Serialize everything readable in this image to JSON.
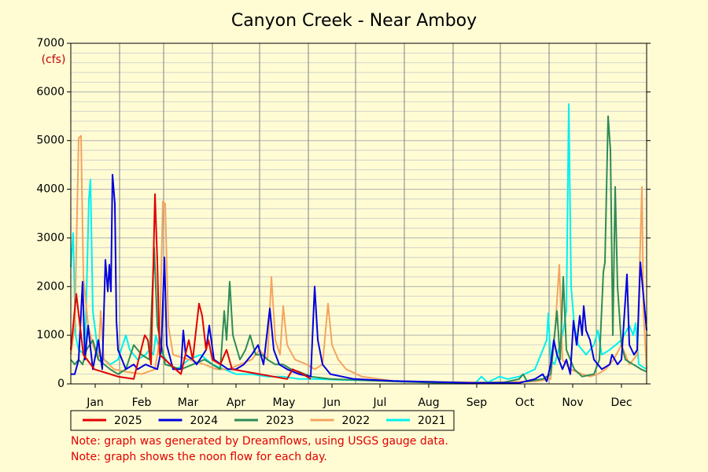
{
  "chart_data": {
    "type": "line",
    "title": "Canyon Creek - Near Amboy",
    "y_label": "(cfs)",
    "xlim": [
      0,
      366
    ],
    "ylim": [
      0,
      7000
    ],
    "yticks": [
      0,
      1000,
      2000,
      3000,
      4000,
      5000,
      6000,
      7000
    ],
    "yminorticks": [
      200,
      400,
      600,
      800,
      1200,
      1400,
      1600,
      1800,
      2200,
      2400,
      2600,
      2800,
      3200,
      3400,
      3600,
      3800,
      4200,
      4400,
      4600,
      4800,
      5200,
      5400,
      5600,
      5800,
      6200,
      6400,
      6600,
      6800
    ],
    "xgrid": [
      0,
      31,
      59,
      90,
      120,
      151,
      181,
      212,
      243,
      273,
      304,
      334,
      366
    ],
    "xticks": [
      {
        "value": 15.5,
        "label": "Jan"
      },
      {
        "value": 45,
        "label": "Feb"
      },
      {
        "value": 74.5,
        "label": "Mar"
      },
      {
        "value": 105,
        "label": "Apr"
      },
      {
        "value": 135.5,
        "label": "May"
      },
      {
        "value": 166,
        "label": "Jun"
      },
      {
        "value": 196.5,
        "label": "Jul"
      },
      {
        "value": 227.5,
        "label": "Aug"
      },
      {
        "value": 258,
        "label": "Sep"
      },
      {
        "value": 288.5,
        "label": "Oct"
      },
      {
        "value": 319,
        "label": "Nov"
      },
      {
        "value": 350,
        "label": "Dec"
      }
    ],
    "grid": true,
    "legend": "bottom",
    "series": [
      {
        "name": "2025",
        "color": "#e00000",
        "x": [
          0,
          3.5,
          8,
          15,
          30,
          40,
          47,
          49,
          51,
          53.5,
          55,
          56.5,
          70,
          75,
          77.5,
          81.5,
          83.5,
          86,
          87.5,
          90,
          95,
          99,
          102.5,
          137.5,
          141,
          147.5,
          152.5
        ],
        "values": [
          700,
          1850,
          600,
          300,
          150,
          100,
          1000,
          900,
          400,
          3900,
          2500,
          600,
          200,
          900,
          500,
          1650,
          1400,
          700,
          900,
          500,
          400,
          700,
          300,
          100,
          300,
          200,
          100
        ]
      },
      {
        "name": "2024",
        "color": "#0000e0",
        "x": [
          0,
          2.5,
          5,
          7.5,
          9,
          11,
          14,
          17.5,
          20,
          22,
          23.5,
          24.5,
          25.5,
          26.5,
          28,
          29,
          30,
          35,
          40,
          42.5,
          47.5,
          55,
          57.5,
          59.5,
          61,
          65,
          70,
          71.5,
          73,
          77.5,
          80,
          86,
          88,
          91,
          100,
          105,
          110,
          115,
          119,
          122.5,
          126.5,
          129,
          132.5,
          137.5,
          145,
          152.5,
          155,
          157,
          160,
          165,
          180,
          205,
          230,
          255,
          285,
          295,
          300,
          302.5,
          305,
          307,
          309,
          312.5,
          315,
          317.5,
          319.5,
          321.5,
          323.5,
          325,
          326,
          327.5,
          330,
          332.5,
          337.5,
          342.5,
          344,
          347.5,
          350,
          353.5,
          355,
          358,
          360,
          362,
          364,
          366
        ],
        "values": [
          200,
          200,
          500,
          2100,
          500,
          1200,
          300,
          900,
          300,
          2550,
          1900,
          2450,
          1900,
          4300,
          3700,
          1300,
          700,
          300,
          400,
          300,
          400,
          300,
          700,
          2600,
          800,
          300,
          300,
          1100,
          600,
          500,
          400,
          700,
          1200,
          500,
          300,
          300,
          400,
          600,
          800,
          400,
          1550,
          700,
          400,
          300,
          200,
          150,
          2000,
          900,
          400,
          200,
          100,
          60,
          40,
          20,
          20,
          100,
          200,
          50,
          400,
          900,
          600,
          300,
          500,
          200,
          1300,
          800,
          1400,
          1000,
          1600,
          1100,
          900,
          500,
          300,
          400,
          600,
          400,
          500,
          2250,
          800,
          600,
          700,
          2500,
          1800,
          1100
        ]
      },
      {
        "name": "2023",
        "color": "#2e8b57",
        "x": [
          0,
          2.5,
          5,
          7.5,
          10,
          14,
          17.5,
          25,
          30,
          35,
          40,
          45,
          50,
          53,
          55,
          60,
          70,
          77.5,
          85,
          90,
          95,
          97.5,
          99,
          101,
          103,
          107.5,
          111,
          114,
          117.5,
          121.5,
          125,
          130,
          135,
          140,
          145,
          152.5,
          165,
          190,
          215,
          235,
          255,
          275,
          285,
          287.5,
          290,
          300,
          305,
          309,
          311,
          313,
          315,
          320,
          325,
          332.5,
          336,
          338.5,
          339.5,
          341.5,
          343,
          344.5,
          346,
          347.5,
          350,
          352.5,
          357.5,
          362.5,
          366
        ],
        "values": [
          500,
          400,
          500,
          400,
          700,
          900,
          500,
          300,
          200,
          300,
          800,
          600,
          500,
          2800,
          1200,
          400,
          300,
          400,
          500,
          400,
          300,
          1500,
          900,
          2100,
          1000,
          500,
          700,
          1000,
          600,
          600,
          500,
          400,
          400,
          300,
          250,
          150,
          100,
          70,
          40,
          20,
          20,
          30,
          100,
          200,
          50,
          100,
          200,
          1500,
          500,
          2200,
          700,
          300,
          150,
          200,
          500,
          2300,
          2500,
          5500,
          4800,
          1000,
          4050,
          2000,
          800,
          500,
          400,
          300,
          250
        ]
      },
      {
        "name": "2022",
        "color": "#f4a460",
        "x": [
          0,
          2.5,
          5,
          6.5,
          8,
          11,
          14,
          17.5,
          19,
          21,
          27.5,
          35,
          45,
          53.5,
          56.5,
          58.5,
          60,
          62,
          65,
          75,
          85,
          92.5,
          100,
          107.5,
          115,
          120,
          125,
          127.5,
          130,
          133,
          135,
          137.5,
          142.5,
          150,
          155,
          160,
          163.5,
          166,
          170,
          175,
          185,
          205,
          235,
          265,
          295,
          305,
          308,
          310.5,
          312.5,
          317.5,
          325,
          330,
          335,
          340,
          345,
          350,
          355,
          360,
          363,
          364,
          366
        ],
        "values": [
          600,
          1200,
          5050,
          5100,
          2200,
          1200,
          800,
          500,
          1500,
          500,
          300,
          250,
          200,
          300,
          900,
          3750,
          3700,
          1200,
          600,
          500,
          400,
          300,
          300,
          400,
          500,
          700,
          500,
          2200,
          900,
          600,
          1600,
          800,
          500,
          400,
          300,
          400,
          1650,
          800,
          500,
          300,
          150,
          60,
          40,
          30,
          50,
          100,
          1200,
          2450,
          500,
          300,
          200,
          150,
          200,
          300,
          500,
          800,
          400,
          600,
          4050,
          1500,
          300
        ]
      },
      {
        "name": "2021",
        "color": "#00f0f0",
        "x": [
          0,
          1.5,
          3,
          5,
          9,
          11.5,
          12.5,
          14,
          17.5,
          25,
          30,
          35,
          37.5,
          42.5,
          47.5,
          50,
          52.5,
          54,
          56.5,
          62.5,
          67.5,
          75,
          82.5,
          90,
          97.5,
          105,
          115,
          125,
          135,
          145,
          155,
          175,
          205,
          235,
          257.5,
          261,
          265,
          272.5,
          277.5,
          285,
          295,
          300,
          302.5,
          303.5,
          305,
          307.5,
          312.5,
          315,
          316.5,
          318,
          320,
          322.5,
          327.5,
          332.5,
          335,
          337.5,
          342.5,
          350,
          355,
          357.5,
          359,
          361,
          366
        ],
        "values": [
          2400,
          3100,
          1000,
          700,
          600,
          3800,
          4200,
          1500,
          600,
          400,
          500,
          1000,
          700,
          500,
          600,
          700,
          600,
          1000,
          700,
          400,
          300,
          500,
          600,
          400,
          300,
          200,
          200,
          150,
          150,
          100,
          100,
          80,
          60,
          40,
          30,
          150,
          30,
          150,
          100,
          150,
          300,
          700,
          900,
          1450,
          500,
          400,
          1000,
          1500,
          5750,
          2000,
          1200,
          800,
          600,
          800,
          1100,
          600,
          700,
          900,
          1200,
          1000,
          1250,
          400,
          300
        ]
      }
    ],
    "notes": [
      "Note: graph was generated by Dreamflows, using USGS gauge data.",
      "Note: graph shows the noon flow for each day."
    ]
  }
}
